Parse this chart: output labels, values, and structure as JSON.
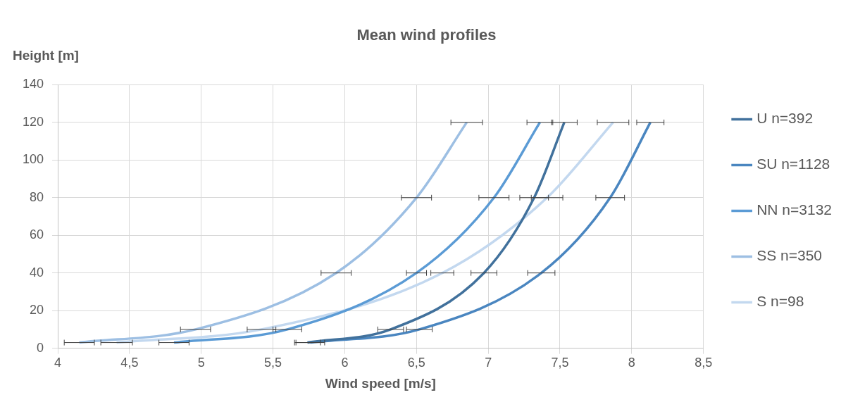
{
  "chart_data": {
    "type": "line",
    "title": "Mean wind profiles",
    "xlabel": "Wind speed [m/s]",
    "ylabel": "Height [m]",
    "xlim": [
      4,
      8.5
    ],
    "xticks": [
      4,
      {
        "value": 4.5,
        "label": "4,5"
      },
      5,
      {
        "value": 5.5,
        "label": "5,5"
      },
      6,
      {
        "value": 6.5,
        "label": "6,5"
      },
      7,
      {
        "value": 7.5,
        "label": "7,5"
      },
      8,
      {
        "value": 8.5,
        "label": "8,5"
      }
    ],
    "ylim": [
      0,
      140
    ],
    "yticks": [
      0,
      20,
      40,
      60,
      80,
      100,
      120,
      140
    ],
    "grid": true,
    "legend": "right",
    "marker": "none",
    "line_style": "solid",
    "series": [
      {
        "name": "U n=392",
        "color": "#41719c",
        "x": [
          5.74,
          6.32,
          6.97,
          7.32,
          7.53
        ],
        "values": [
          3,
          10,
          40,
          80,
          120
        ],
        "xerrors": [
          0.09,
          0.09,
          0.09,
          0.1,
          0.09
        ]
      },
      {
        "name": "SU n=1128",
        "color": "#4a86c0",
        "x": [
          5.76,
          6.52,
          7.37,
          7.85,
          8.13
        ],
        "values": [
          3,
          10,
          40,
          80,
          120
        ],
        "xerrors": [
          0.1,
          0.09,
          0.095,
          0.1,
          0.095
        ]
      },
      {
        "name": "NN n=3132",
        "color": "#5b9bd5",
        "x": [
          4.81,
          5.6,
          6.5,
          7.04,
          7.36
        ],
        "values": [
          3,
          10,
          40,
          80,
          120
        ],
        "xerrors": [
          0.105,
          0.1,
          0.07,
          0.105,
          0.09
        ]
      },
      {
        "name": "SS n=350",
        "color": "#9dbfe3",
        "x": [
          4.15,
          4.96,
          5.94,
          6.5,
          6.85
        ],
        "values": [
          3,
          10,
          40,
          80,
          120
        ],
        "xerrors": [
          0.105,
          0.105,
          0.105,
          0.105,
          0.11
        ]
      },
      {
        "name": "S n=98",
        "color": "#c3d8ef",
        "x": [
          4.41,
          5.42,
          6.68,
          7.41,
          7.87
        ],
        "values": [
          3,
          10,
          40,
          80,
          120
        ],
        "xerrors": [
          0.11,
          0.1,
          0.08,
          0.11,
          0.11
        ]
      }
    ]
  }
}
